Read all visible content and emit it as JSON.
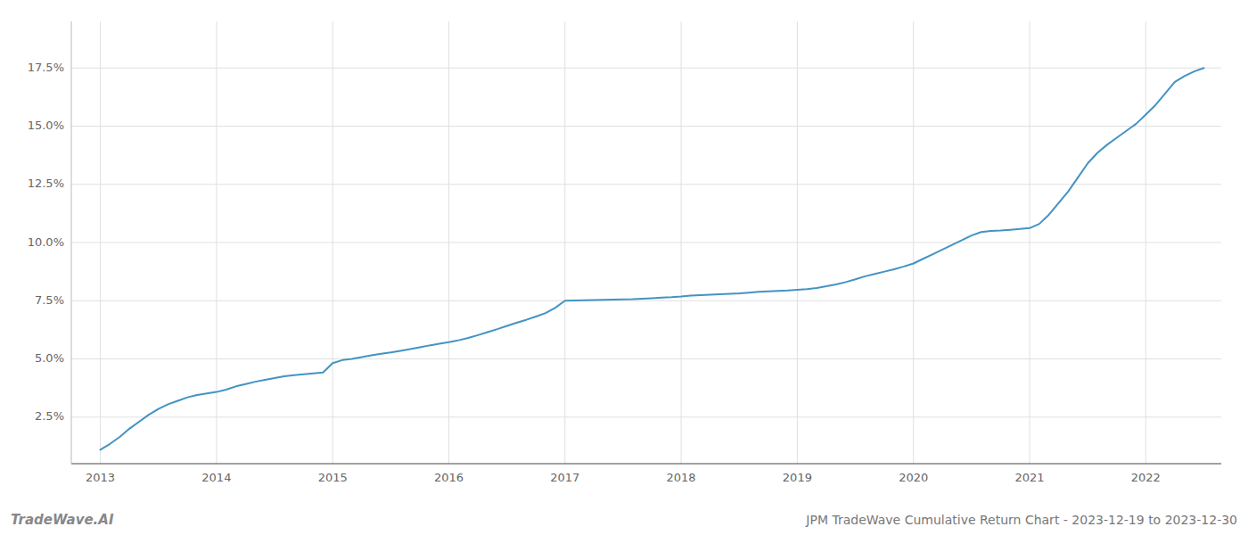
{
  "chart_data": {
    "type": "line",
    "title": "JPM TradeWave Cumulative Return Chart - 2023-12-19 to 2023-12-30",
    "annotations": [
      "TradeWave.AI"
    ],
    "color": "#4393c3",
    "grid": true,
    "x": [
      2013.0,
      2013.083,
      2013.167,
      2013.25,
      2013.333,
      2013.417,
      2013.5,
      2013.583,
      2013.667,
      2013.75,
      2013.833,
      2013.917,
      2014.0,
      2014.083,
      2014.167,
      2014.25,
      2014.333,
      2014.417,
      2014.5,
      2014.583,
      2014.667,
      2014.75,
      2014.833,
      2014.917,
      2015.0,
      2015.083,
      2015.167,
      2015.25,
      2015.333,
      2015.417,
      2015.5,
      2015.583,
      2015.667,
      2015.75,
      2015.833,
      2015.917,
      2016.0,
      2016.083,
      2016.167,
      2016.25,
      2016.333,
      2016.417,
      2016.5,
      2016.583,
      2016.667,
      2016.75,
      2016.833,
      2016.917,
      2017.0,
      2017.083,
      2017.167,
      2017.25,
      2017.333,
      2017.417,
      2017.5,
      2017.583,
      2017.667,
      2017.75,
      2017.833,
      2017.917,
      2018.0,
      2018.083,
      2018.167,
      2018.25,
      2018.333,
      2018.417,
      2018.5,
      2018.583,
      2018.667,
      2018.75,
      2018.833,
      2018.917,
      2019.0,
      2019.083,
      2019.167,
      2019.25,
      2019.333,
      2019.417,
      2019.5,
      2019.583,
      2019.667,
      2019.75,
      2019.833,
      2019.917,
      2020.0,
      2020.083,
      2020.167,
      2020.25,
      2020.333,
      2020.417,
      2020.5,
      2020.583,
      2020.667,
      2020.75,
      2020.833,
      2020.917,
      2021.0,
      2021.083,
      2021.167,
      2021.25,
      2021.333,
      2021.417,
      2021.5,
      2021.583,
      2021.667,
      2021.75,
      2021.833,
      2021.917,
      2022.0,
      2022.083,
      2022.167,
      2022.25,
      2022.333,
      2022.417,
      2022.5
    ],
    "values": [
      1.1,
      1.35,
      1.65,
      2.0,
      2.3,
      2.6,
      2.85,
      3.05,
      3.2,
      3.35,
      3.45,
      3.52,
      3.58,
      3.68,
      3.82,
      3.92,
      4.02,
      4.1,
      4.18,
      4.25,
      4.3,
      4.34,
      4.38,
      4.42,
      4.82,
      4.95,
      5.0,
      5.08,
      5.15,
      5.22,
      5.28,
      5.35,
      5.42,
      5.5,
      5.58,
      5.65,
      5.72,
      5.8,
      5.9,
      6.02,
      6.15,
      6.28,
      6.42,
      6.55,
      6.68,
      6.82,
      6.97,
      7.2,
      7.5,
      7.51,
      7.52,
      7.53,
      7.54,
      7.55,
      7.56,
      7.57,
      7.59,
      7.61,
      7.63,
      7.65,
      7.68,
      7.72,
      7.74,
      7.76,
      7.78,
      7.8,
      7.82,
      7.85,
      7.88,
      7.9,
      7.92,
      7.94,
      7.97,
      8.0,
      8.05,
      8.12,
      8.2,
      8.3,
      8.42,
      8.55,
      8.65,
      8.75,
      8.85,
      8.97,
      9.1,
      9.3,
      9.5,
      9.7,
      9.9,
      10.1,
      10.3,
      10.45,
      10.5,
      10.52,
      10.55,
      10.58,
      10.62,
      10.8,
      11.2,
      11.7,
      12.2,
      12.8,
      13.4,
      13.85,
      14.2,
      14.5,
      14.8,
      15.1,
      15.5,
      15.9,
      16.4,
      16.9,
      17.15,
      17.35,
      17.5
    ],
    "xlim": [
      2012.75,
      2022.65
    ],
    "xticks": [
      2013,
      2014,
      2015,
      2016,
      2017,
      2018,
      2019,
      2020,
      2021,
      2022
    ],
    "ylim": [
      0.5,
      19.5
    ],
    "yticks": [
      {
        "value": 2.5,
        "label": "2.5%"
      },
      {
        "value": 5.0,
        "label": "5.0%"
      },
      {
        "value": 7.5,
        "label": "7.5%"
      },
      {
        "value": 10.0,
        "label": "10.0%"
      },
      {
        "value": 12.5,
        "label": "12.5%"
      },
      {
        "value": 15.0,
        "label": "15.0%"
      },
      {
        "value": 17.5,
        "label": "17.5%"
      }
    ]
  }
}
